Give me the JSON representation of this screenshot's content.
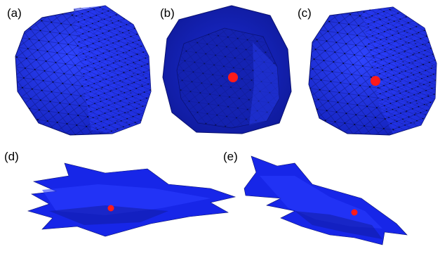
{
  "panels": [
    {
      "id": "a",
      "label": "(a)",
      "marker": false
    },
    {
      "id": "b",
      "label": "(b)",
      "marker": true
    },
    {
      "id": "c",
      "label": "(c)",
      "marker": true
    },
    {
      "id": "d",
      "label": "(d)",
      "marker": true
    },
    {
      "id": "e",
      "label": "(e)",
      "marker": true
    }
  ],
  "colors": {
    "mesh_fill": "#1a2bf0",
    "mesh_shade": "#1220b8",
    "mesh_light": "#2f45ff",
    "edge": "#0a1170",
    "marker": "#ff1a1a",
    "background": "#ffffff"
  }
}
